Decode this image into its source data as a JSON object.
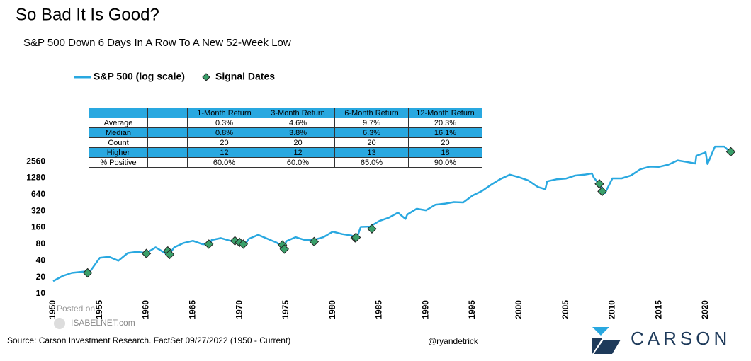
{
  "title": "So Bad It Is Good?",
  "subtitle": "S&P 500 Down 6 Days In A Row To A New 52-Week Low",
  "source": "Source: Carson Investment Research. FactSet 09/27/2022 (1950 - Current)",
  "handle": "@ryandetrick",
  "watermark": [
    "Posted on",
    "ISABELNET.com"
  ],
  "logo": "CARSON",
  "table": {
    "header": [
      "1-Month Return",
      "3-Month Return",
      "6-Month Return",
      "12-Month Return"
    ],
    "rows": [
      [
        "Average",
        "0.3%",
        "4.6%",
        "9.7%",
        "20.3%"
      ],
      [
        "Median",
        "0.8%",
        "3.8%",
        "6.3%",
        "16.1%"
      ],
      [
        "Count",
        "20",
        "20",
        "20",
        "20"
      ],
      [
        "Higher",
        "12",
        "12",
        "13",
        "18"
      ],
      [
        "% Positive",
        "60.0%",
        "60.0%",
        "65.0%",
        "90.0%"
      ]
    ]
  },
  "chart_data": {
    "type": "line",
    "log_scale": true,
    "legend": "top-left",
    "xlim": [
      1950,
      2023.5
    ],
    "xticks": [
      1950,
      1955,
      1960,
      1965,
      1970,
      1975,
      1980,
      1985,
      1990,
      1995,
      2000,
      2005,
      2010,
      2015,
      2020
    ],
    "ylim": [
      10,
      20480
    ],
    "yticks": [
      10,
      20,
      40,
      80,
      160,
      320,
      640,
      1280,
      2560
    ],
    "series": [
      {
        "name": "S&P 500 (log scale)",
        "type": "line",
        "color": "#29a8e0",
        "x": [
          1950,
          1951,
          1952,
          1953,
          1954,
          1955,
          1956,
          1957,
          1958,
          1959,
          1960,
          1961,
          1962,
          1962.5,
          1963,
          1964,
          1965,
          1966,
          1966.8,
          1967,
          1968,
          1969,
          1970,
          1970.4,
          1971,
          1972,
          1973,
          1974,
          1974.8,
          1975,
          1976,
          1977,
          1978,
          1979,
          1980,
          1981,
          1982,
          1982.6,
          1983,
          1984,
          1985,
          1986,
          1987,
          1987.8,
          1988,
          1989,
          1990,
          1991,
          1992,
          1993,
          1994,
          1995,
          1996,
          1997,
          1998,
          1999,
          2000,
          2001,
          2002,
          2002.8,
          2003,
          2004,
          2005,
          2006,
          2007,
          2007.8,
          2008,
          2008.9,
          2009.2,
          2010,
          2011,
          2012,
          2013,
          2014,
          2015,
          2016,
          2017,
          2018,
          2018.9,
          2019,
          2020,
          2020.2,
          2021,
          2022,
          2022.75
        ],
        "values": [
          17,
          21,
          24,
          25,
          26,
          45,
          47,
          40,
          55,
          58,
          55,
          70,
          55,
          54,
          70,
          84,
          92,
          80,
          78,
          95,
          103,
          92,
          86,
          72,
          100,
          118,
          100,
          85,
          65,
          90,
          107,
          95,
          96,
          107,
          135,
          122,
          115,
          105,
          165,
          167,
          211,
          242,
          300,
          230,
          277,
          353,
          330,
          417,
          435,
          466,
          459,
          615,
          740,
          970,
          1229,
          1469,
          1320,
          1148,
          880,
          800,
          1112,
          1212,
          1248,
          1418,
          1468,
          1550,
          1300,
          850,
          680,
          1258,
          1258,
          1426,
          1848,
          2059,
          2044,
          2239,
          2674,
          2507,
          2350,
          3231,
          3756,
          2300,
          4766,
          4766,
          3650
        ]
      },
      {
        "name": "Signal Dates",
        "type": "scatter",
        "color": "#3aa06a",
        "x": [
          1953.7,
          1960.0,
          1962.3,
          1962.5,
          1966.7,
          1969.5,
          1970.0,
          1970.4,
          1974.6,
          1974.8,
          1978.0,
          1982.4,
          1982.5,
          1984.2,
          2008.6,
          2008.9,
          2022.7
        ],
        "values": [
          24,
          54,
          60,
          52,
          80,
          92,
          86,
          80,
          77,
          65,
          89,
          104,
          106,
          152,
          1000,
          730,
          3850
        ]
      }
    ]
  }
}
